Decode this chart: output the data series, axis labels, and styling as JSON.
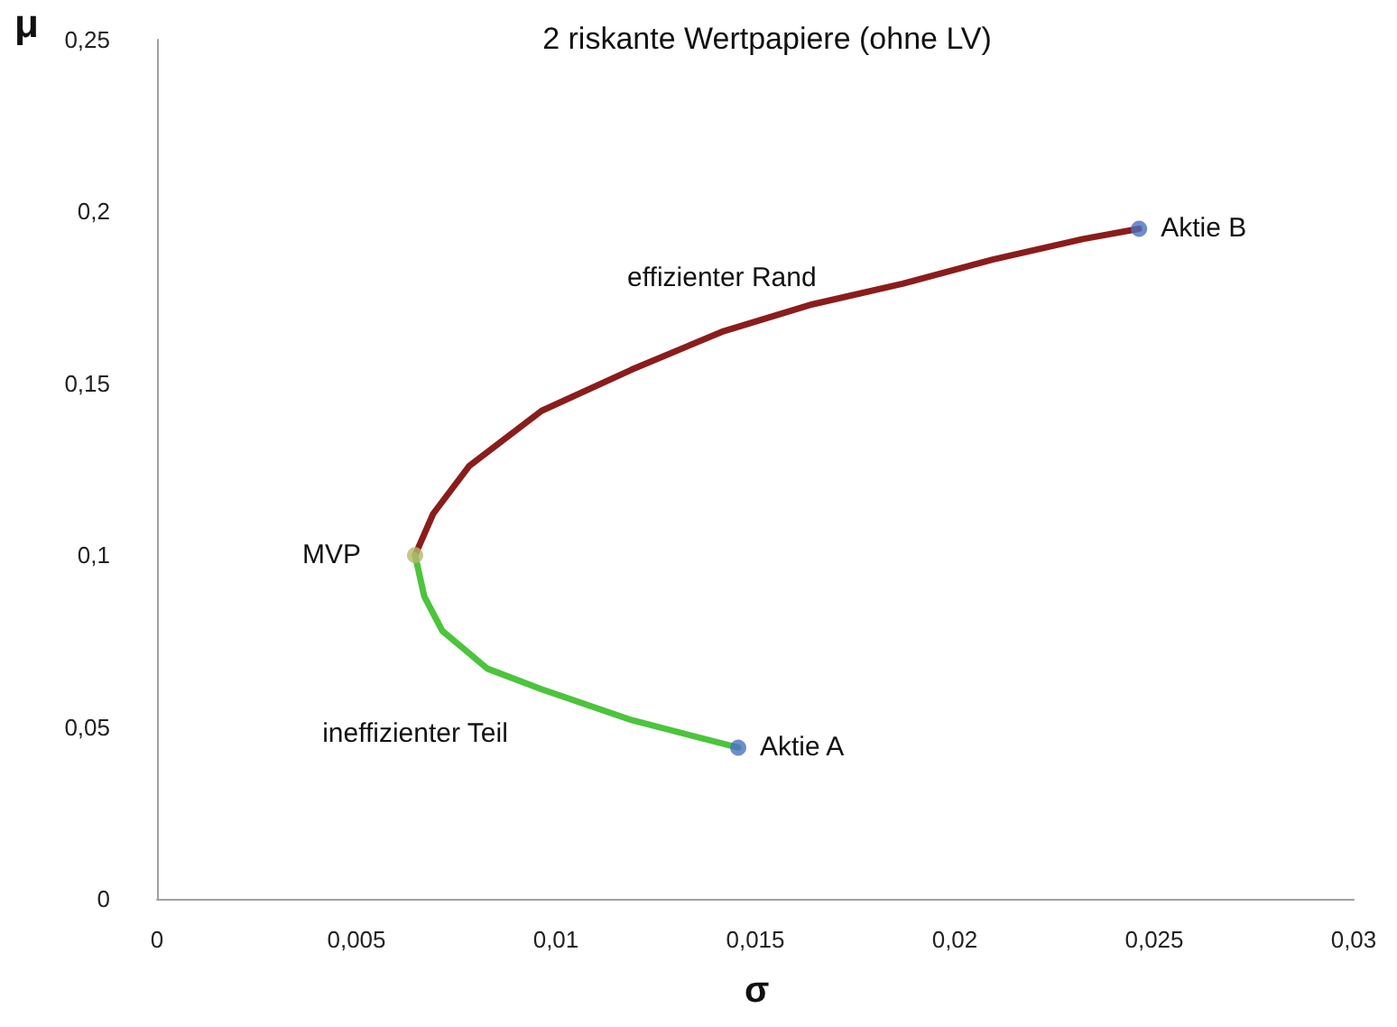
{
  "chart_data": {
    "type": "line",
    "title": "2 riskante Wertpapiere (ohne LV)",
    "xlabel": "σ",
    "ylabel": "μ",
    "xlim": [
      0,
      0.03
    ],
    "ylim": [
      0,
      0.25
    ],
    "xticks": [
      0,
      {
        "value": 0.005,
        "label": "0,005"
      },
      {
        "value": 0.01,
        "label": "0,01"
      },
      {
        "value": 0.015,
        "label": "0,015"
      },
      {
        "value": 0.02,
        "label": "0,02"
      },
      {
        "value": 0.025,
        "label": "0,025"
      },
      {
        "value": 0.03,
        "label": "0,03"
      }
    ],
    "yticks": [
      0,
      {
        "value": 0.05,
        "label": "0,05"
      },
      {
        "value": 0.1,
        "label": "0,1"
      },
      {
        "value": 0.15,
        "label": "0,15"
      },
      {
        "value": 0.2,
        "label": "0,2"
      },
      {
        "value": 0.25,
        "label": "0,25"
      }
    ],
    "grid": false,
    "legend": false,
    "marker": "none",
    "line_style": "solid",
    "series": [
      {
        "name": "effizienter Rand",
        "color": "#8b1c1c",
        "x": [
          0.00647,
          0.00692,
          0.00783,
          0.00964,
          0.0119,
          0.01416,
          0.01643,
          0.01869,
          0.02095,
          0.02321,
          0.02462
        ],
        "values": [
          0.1,
          0.112,
          0.126,
          0.142,
          0.154,
          0.165,
          0.173,
          0.179,
          0.186,
          0.192,
          0.195
        ]
      },
      {
        "name": "ineffizienter Teil",
        "color": "#4cc43c",
        "x": [
          0.00647,
          0.0067,
          0.00715,
          0.00828,
          0.00964,
          0.0119,
          0.01457
        ],
        "values": [
          0.1,
          0.088,
          0.078,
          0.067,
          0.061,
          0.052,
          0.044
        ]
      },
      {
        "type": "scatter",
        "marker": "circle",
        "x": [
          0.00647,
          0.01457,
          0.02462
        ],
        "values": [
          0.1,
          0.044,
          0.195
        ],
        "colors": [
          "#b8b86a",
          "#4a70c0",
          "#4a70c0"
        ]
      }
    ],
    "annotations": [
      {
        "text": "MVP",
        "x": 0.00647,
        "y": 0.1
      },
      {
        "text": "Aktie A",
        "x": 0.01457,
        "y": 0.044
      },
      {
        "text": "Aktie B",
        "x": 0.02462,
        "y": 0.195
      }
    ]
  }
}
